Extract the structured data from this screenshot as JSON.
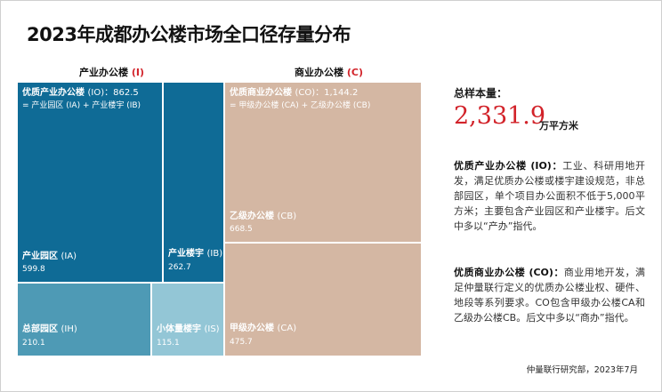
{
  "title": "2023年成都办公楼市场全口径存量分布",
  "groups": {
    "industrial": {
      "label": "产业办公楼 ",
      "code": "(I)"
    },
    "commercial": {
      "label": "商业办公楼 ",
      "code": "(C)"
    }
  },
  "chart_data": {
    "type": "treemap",
    "unit": "万平方米",
    "groups": [
      {
        "name": "优质产业办公楼",
        "code": "(IO)",
        "value": 862.5,
        "composition": "= 产业园区 (IA) + 产业楼宇 (IB)",
        "children": [
          {
            "name": "产业园区",
            "code": "(IA)",
            "value": 599.8
          },
          {
            "name": "产业楼宇",
            "code": "(IB)",
            "value": 262.7
          },
          {
            "name": "总部园区",
            "code": "(IH)",
            "value": 210.1
          },
          {
            "name": "小体量楼宇",
            "code": "(IS)",
            "value": 115.1
          }
        ]
      },
      {
        "name": "优质商业办公楼",
        "code": "(CO)",
        "value": 1144.2,
        "composition": "= 甲级办公楼 (CA) + 乙级办公楼 (CB)",
        "children": [
          {
            "name": "乙级办公楼",
            "code": "(CB)",
            "value": 668.5
          },
          {
            "name": "甲级办公楼",
            "code": "(CA)",
            "value": 475.7
          }
        ]
      }
    ],
    "colors": {
      "industrial_quality": "#0f6b96",
      "industrial_other": "#4e9ab5",
      "industrial_small": "#93c6d6",
      "commercial": "#d4b7a3",
      "accent": "#d2232a"
    }
  },
  "labels": {
    "io_name": "优质产业办公楼 ",
    "io_code": "(IO)",
    "io_value": "：862.5",
    "io_comp": "= 产业园区 (IA) + 产业楼宇 (IB)",
    "ia_name": "产业园区 ",
    "ia_code": "(IA)",
    "ia_value": "599.8",
    "ib_name": "产业楼宇 ",
    "ib_code": "(IB)",
    "ib_value": "262.7",
    "ih_name": "总部园区 ",
    "ih_code": "(IH)",
    "ih_value": "210.1",
    "is_name": "小体量楼宇 ",
    "is_code": "(IS)",
    "is_value": "115.1",
    "co_name": "优质商业办公楼 ",
    "co_code": "(CO)",
    "co_value": "：1,144.2",
    "co_comp": "= 甲级办公楼 (CA) + 乙级办公楼 (CB)",
    "cb_name": "乙级办公楼 ",
    "cb_code": "(CB)",
    "cb_value": "668.5",
    "ca_name": "甲级办公楼 ",
    "ca_code": "(CA)",
    "ca_value": "475.7"
  },
  "summary": {
    "total_label": "总样本量：",
    "total_value": "2,331.9",
    "total_unit": "万平方米"
  },
  "definitions": {
    "io_term": "优质产业办公楼 (IO)：",
    "io_text": "工业、科研用地开发，满足优质办公楼或楼宇建设规范，非总部园区，单个项目办公面积不低于5,000平方米；主要包含产业园区和产业楼宇。后文中多以“产办”指代。",
    "co_term": "优质商业办公楼 (CO)：",
    "co_text": "商业用地开发，满足仲量联行定义的优质办公楼业权、硬件、地段等系列要求。CO包含甲级办公楼CA和乙级办公楼CB。后文中多以“商办”指代。"
  },
  "source": "仲量联行研究部，2023年7月"
}
